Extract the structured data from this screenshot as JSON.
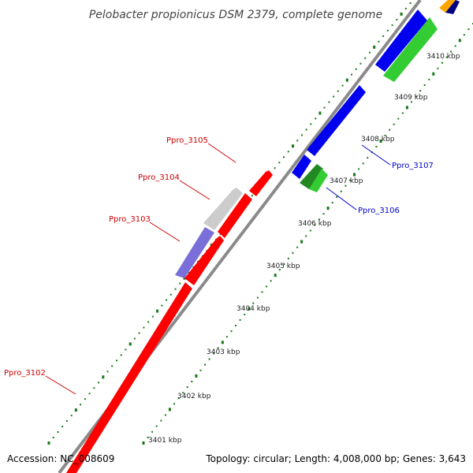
{
  "title": "Pelobacter propionicus DSM 2379, complete genome",
  "footer": {
    "accession": "Accession: NC_008609",
    "summary": "Topology: circular; Length: 4,008,000 bp; Genes: 3,643"
  },
  "colors": {
    "backbone": "#8a8a8a",
    "tick": "#1a7a1a",
    "red": "#ff0000",
    "blue": "#0000ee",
    "green": "#33cc33",
    "dark_green": "#228822",
    "purple": "#7a6fd8",
    "gray": "#cccccc",
    "orange": "#ffa500",
    "navy": "#000080",
    "label_red": "#cc0000",
    "label_blue": "#0000cc"
  },
  "ticks": [
    {
      "label": "3401 kbp"
    },
    {
      "label": "3402 kbp"
    },
    {
      "label": "3403 kbp"
    },
    {
      "label": "3404 kbp"
    },
    {
      "label": "3405 kbp"
    },
    {
      "label": "3406 kbp"
    },
    {
      "label": "3407 kbp"
    },
    {
      "label": "3408 kbp"
    },
    {
      "label": "3409 kbp"
    },
    {
      "label": "3410 kbp"
    }
  ],
  "gene_labels": [
    {
      "text": "Ppro_3102",
      "color": "label_red"
    },
    {
      "text": "Ppro_3103",
      "color": "label_red"
    },
    {
      "text": "Ppro_3104",
      "color": "label_red"
    },
    {
      "text": "Ppro_3105",
      "color": "label_red"
    },
    {
      "text": "Ppro_3106",
      "color": "label_blue"
    },
    {
      "text": "Ppro_3107",
      "color": "label_blue"
    }
  ]
}
